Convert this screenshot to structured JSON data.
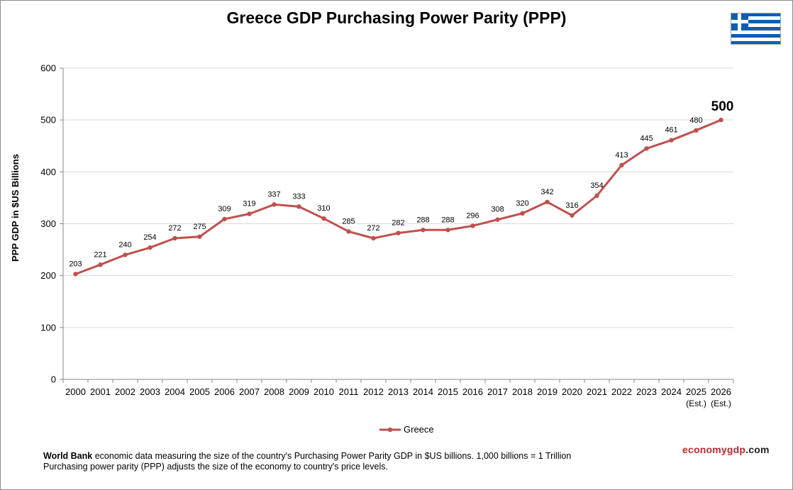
{
  "chart_data": {
    "type": "line",
    "title": "Greece GDP Purchasing Power Parity (PPP)",
    "ylabel": "PPP GDP in $US Billions",
    "xlabel": "",
    "ylim": [
      0,
      600
    ],
    "yticks": [
      0,
      100,
      200,
      300,
      400,
      500,
      600
    ],
    "categories": [
      {
        "year": "2000",
        "note": ""
      },
      {
        "year": "2001",
        "note": ""
      },
      {
        "year": "2002",
        "note": ""
      },
      {
        "year": "2003",
        "note": ""
      },
      {
        "year": "2004",
        "note": ""
      },
      {
        "year": "2005",
        "note": ""
      },
      {
        "year": "2006",
        "note": ""
      },
      {
        "year": "2007",
        "note": ""
      },
      {
        "year": "2008",
        "note": ""
      },
      {
        "year": "2009",
        "note": ""
      },
      {
        "year": "2010",
        "note": ""
      },
      {
        "year": "2011",
        "note": ""
      },
      {
        "year": "2012",
        "note": ""
      },
      {
        "year": "2013",
        "note": ""
      },
      {
        "year": "2014",
        "note": ""
      },
      {
        "year": "2015",
        "note": ""
      },
      {
        "year": "2016",
        "note": ""
      },
      {
        "year": "2017",
        "note": ""
      },
      {
        "year": "2018",
        "note": ""
      },
      {
        "year": "2019",
        "note": ""
      },
      {
        "year": "2020",
        "note": ""
      },
      {
        "year": "2021",
        "note": ""
      },
      {
        "year": "2022",
        "note": ""
      },
      {
        "year": "2023",
        "note": ""
      },
      {
        "year": "2024",
        "note": ""
      },
      {
        "year": "2025",
        "note": "(Est.)"
      },
      {
        "year": "2026",
        "note": "(Est.)"
      }
    ],
    "series": [
      {
        "name": "Greece",
        "color": "#c0504d",
        "values": [
          203,
          221,
          240,
          254,
          272,
          275,
          309,
          319,
          337,
          333,
          310,
          285,
          272,
          282,
          288,
          288,
          296,
          308,
          320,
          342,
          316,
          354,
          413,
          445,
          461,
          480,
          500
        ]
      }
    ],
    "highlight_last_label": true,
    "grid": true,
    "legend_position": "bottom-center"
  },
  "footer": {
    "source_bold": "World Bank",
    "line1_rest": " economic data measuring the size of the country's Purchasing Power Parity GDP in $US billions. 1,000 billions = 1 Trillion",
    "line2": "Purchasing power parity (PPP) adjusts the size of the economy to country's price levels."
  },
  "brand": {
    "part1": "economy",
    "part2": "gdp",
    "part3": ".com"
  },
  "flag": {
    "icon": "greece-flag-icon",
    "blue": "#0d5eaf",
    "white": "#ffffff"
  }
}
